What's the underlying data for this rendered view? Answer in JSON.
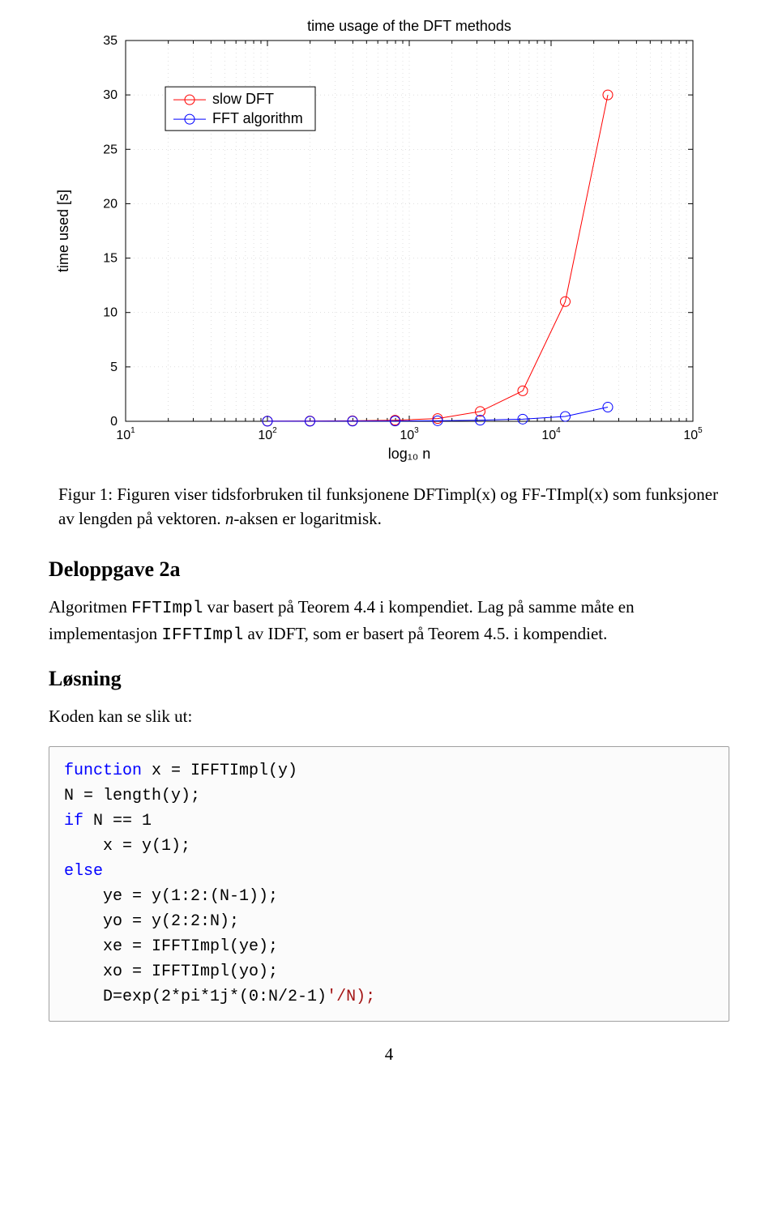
{
  "chart": {
    "type": "line",
    "title": "time usage of the DFT methods",
    "title_fontsize": 18,
    "xlabel": "log₁₀ n",
    "ylabel": "time used [s]",
    "label_fontsize": 18,
    "tick_fontsize": 16,
    "background_color": "#ffffff",
    "grid_color": "#c0c0c0",
    "axis_color": "#000000",
    "xlim_log": [
      1,
      5
    ],
    "ylim": [
      0,
      35
    ],
    "ytick_step": 5,
    "yticks": [
      0,
      5,
      10,
      15,
      20,
      25,
      30,
      35
    ],
    "xticks_log": [
      1,
      2,
      3,
      4,
      5
    ],
    "xticks_labels": [
      "10¹",
      "10²",
      "10³",
      "10⁴",
      "10⁵"
    ],
    "xscale": "log",
    "legend": {
      "position": "upper-left",
      "x_log": 1.28,
      "y_val": 30,
      "box_color": "#000000",
      "bg_color": "#ffffff",
      "fontsize": 18
    },
    "series": [
      {
        "name": "slow DFT",
        "color": "#ff0000",
        "marker": "circle",
        "marker_size": 6,
        "line_width": 1,
        "points": [
          {
            "x_log": 2.0,
            "y": 0.02
          },
          {
            "x_log": 2.3,
            "y": 0.03
          },
          {
            "x_log": 2.6,
            "y": 0.05
          },
          {
            "x_log": 2.9,
            "y": 0.1
          },
          {
            "x_log": 3.2,
            "y": 0.25
          },
          {
            "x_log": 3.5,
            "y": 0.9
          },
          {
            "x_log": 3.8,
            "y": 2.8
          },
          {
            "x_log": 4.1,
            "y": 11.0
          },
          {
            "x_log": 4.4,
            "y": 30.0
          }
        ]
      },
      {
        "name": "FFT algorithm",
        "color": "#0000ff",
        "marker": "circle",
        "marker_size": 6,
        "line_width": 1,
        "points": [
          {
            "x_log": 2.0,
            "y": 0.01
          },
          {
            "x_log": 2.3,
            "y": 0.01
          },
          {
            "x_log": 2.6,
            "y": 0.02
          },
          {
            "x_log": 2.9,
            "y": 0.03
          },
          {
            "x_log": 3.2,
            "y": 0.05
          },
          {
            "x_log": 3.5,
            "y": 0.1
          },
          {
            "x_log": 3.8,
            "y": 0.2
          },
          {
            "x_log": 4.1,
            "y": 0.45
          },
          {
            "x_log": 4.4,
            "y": 1.3
          }
        ]
      }
    ]
  },
  "caption_prefix": "Figur 1: Figuren viser tidsforbruken til funksjonene DFTimpl(x) og FF-TImpl(x) som funksjoner av lengden på vektoren. ",
  "caption_ital": "n",
  "caption_suffix": "-aksen er logaritmisk.",
  "heading_2a": "Deloppgave 2a",
  "para_2a_1": "Algoritmen ",
  "para_2a_code1": "FFTImpl",
  "para_2a_2": " var basert på Teorem 4.4 i kompendiet. Lag på samme måte en implementasjon ",
  "para_2a_code2": "IFFTImpl",
  "para_2a_3": " av IDFT, som er basert på Teorem 4.5. i kompendiet.",
  "heading_losning": "Løsning",
  "para_losning": "Koden kan se slik ut:",
  "code": {
    "l1_kw": "function",
    "l1_rest": " x = IFFTImpl(y)",
    "l2": "N = length(y);",
    "l3_kw": "if",
    "l3_rest": " N == 1",
    "l4": "    x = y(1);",
    "l5_kw": "else",
    "l6": "    ye = y(1:2:(N-1));",
    "l7": "    yo = y(2:2:N);",
    "l8": "    xe = IFFTImpl(ye);",
    "l9": "    xo = IFFTImpl(yo);",
    "l10a": "    D=exp(2*pi*1j*(0:N/2-1)",
    "l10_str": "'/N);",
    "l10b": ""
  },
  "page_number": "4"
}
